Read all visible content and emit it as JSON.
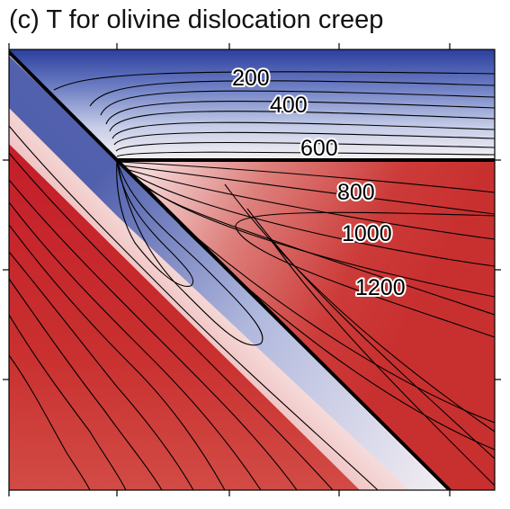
{
  "chart_data": {
    "type": "heatmap",
    "title": "(c) T for olivine  dislocation creep",
    "xlabel": "",
    "ylabel": "",
    "colormap": [
      "#2a3f9c",
      "#ffffff",
      "#c8222a"
    ],
    "contour_labels": [
      "200",
      "400",
      "600",
      "800",
      "1000",
      "1200"
    ],
    "contour_levels": [
      200,
      400,
      600,
      800,
      1000,
      1200
    ],
    "grid": false,
    "legend": "none"
  }
}
